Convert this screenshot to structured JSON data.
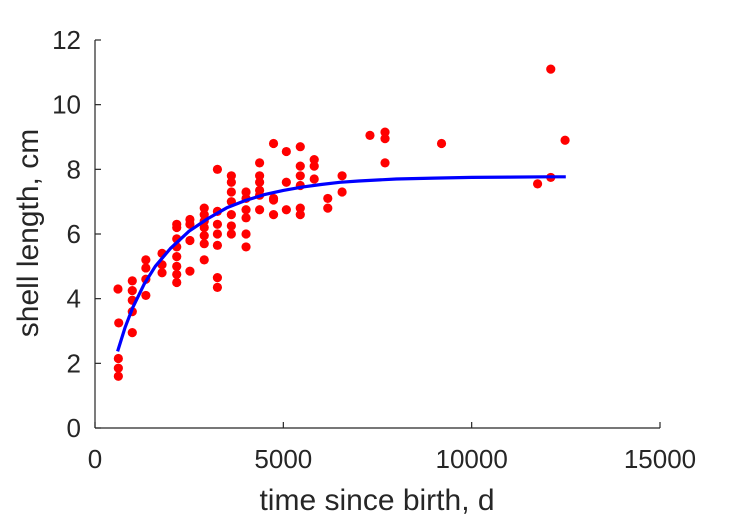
{
  "chart_data": {
    "type": "scatter",
    "title": "",
    "xlabel": "time since birth, d",
    "ylabel": "shell length, cm",
    "xlim": [
      0,
      15000
    ],
    "ylim": [
      0,
      12
    ],
    "xticks": [
      0,
      5000,
      10000,
      15000
    ],
    "xtick_labels": [
      "0",
      "5000",
      "10000",
      "15000"
    ],
    "yticks": [
      0,
      2,
      4,
      6,
      8,
      10,
      12
    ],
    "ytick_labels": [
      "0",
      "2",
      "4",
      "6",
      "8",
      "10",
      "12"
    ],
    "grid": false,
    "legend": "none",
    "series": [
      {
        "type": "scatter",
        "color": "#ff0000",
        "points": [
          [
            610,
            4.3
          ],
          [
            630,
            3.25
          ],
          [
            620,
            2.15
          ],
          [
            620,
            1.85
          ],
          [
            620,
            1.6
          ],
          [
            990,
            4.55
          ],
          [
            990,
            4.25
          ],
          [
            990,
            3.95
          ],
          [
            990,
            3.6
          ],
          [
            990,
            2.95
          ],
          [
            1350,
            5.2
          ],
          [
            1350,
            4.95
          ],
          [
            1350,
            4.6
          ],
          [
            1350,
            4.1
          ],
          [
            1780,
            5.4
          ],
          [
            1780,
            5.05
          ],
          [
            1780,
            4.8
          ],
          [
            2170,
            6.3
          ],
          [
            2170,
            6.2
          ],
          [
            2170,
            5.85
          ],
          [
            2170,
            5.6
          ],
          [
            2170,
            5.3
          ],
          [
            2170,
            5.0
          ],
          [
            2170,
            4.75
          ],
          [
            2170,
            4.5
          ],
          [
            2520,
            6.45
          ],
          [
            2520,
            6.3
          ],
          [
            2520,
            5.8
          ],
          [
            2520,
            4.85
          ],
          [
            2900,
            6.8
          ],
          [
            2900,
            6.6
          ],
          [
            2900,
            6.4
          ],
          [
            2900,
            6.2
          ],
          [
            2900,
            5.95
          ],
          [
            2900,
            5.7
          ],
          [
            2900,
            5.2
          ],
          [
            3250,
            8.0
          ],
          [
            3250,
            6.7
          ],
          [
            3250,
            6.3
          ],
          [
            3250,
            6.0
          ],
          [
            3250,
            5.65
          ],
          [
            3250,
            4.65
          ],
          [
            3250,
            4.35
          ],
          [
            3620,
            7.8
          ],
          [
            3620,
            7.6
          ],
          [
            3620,
            7.3
          ],
          [
            3620,
            7.0
          ],
          [
            3620,
            6.6
          ],
          [
            3620,
            6.25
          ],
          [
            3620,
            6.0
          ],
          [
            4010,
            7.3
          ],
          [
            4010,
            7.1
          ],
          [
            4010,
            6.75
          ],
          [
            4010,
            6.5
          ],
          [
            4010,
            6.0
          ],
          [
            4010,
            5.6
          ],
          [
            4370,
            8.2
          ],
          [
            4370,
            7.8
          ],
          [
            4370,
            7.6
          ],
          [
            4370,
            7.35
          ],
          [
            4370,
            7.2
          ],
          [
            4370,
            6.75
          ],
          [
            4740,
            8.8
          ],
          [
            4740,
            7.1
          ],
          [
            4740,
            7.05
          ],
          [
            4740,
            6.6
          ],
          [
            5080,
            8.55
          ],
          [
            5080,
            7.6
          ],
          [
            5080,
            6.75
          ],
          [
            5450,
            8.7
          ],
          [
            5450,
            8.1
          ],
          [
            5450,
            7.8
          ],
          [
            5450,
            7.5
          ],
          [
            5450,
            6.8
          ],
          [
            5450,
            6.6
          ],
          [
            5820,
            8.3
          ],
          [
            5820,
            8.1
          ],
          [
            5820,
            7.7
          ],
          [
            6180,
            7.1
          ],
          [
            6180,
            6.8
          ],
          [
            6560,
            7.8
          ],
          [
            6560,
            7.3
          ],
          [
            7300,
            9.05
          ],
          [
            7700,
            9.15
          ],
          [
            7700,
            8.95
          ],
          [
            7700,
            8.2
          ],
          [
            9200,
            8.8
          ],
          [
            11750,
            7.55
          ],
          [
            12100,
            11.1
          ],
          [
            12100,
            7.75
          ],
          [
            12480,
            8.9
          ]
        ]
      },
      {
        "type": "line",
        "color": "#0000ff",
        "x": [
          600,
          800,
          1000,
          1300,
          1600,
          2000,
          2500,
          3000,
          3500,
          4000,
          4500,
          5000,
          5500,
          6000,
          6500,
          7000,
          8000,
          9000,
          10000,
          11000,
          12000,
          12500
        ],
        "y": [
          2.37,
          3.11,
          3.72,
          4.44,
          5.0,
          5.55,
          6.09,
          6.48,
          6.81,
          7.04,
          7.22,
          7.35,
          7.45,
          7.53,
          7.6,
          7.64,
          7.7,
          7.73,
          7.75,
          7.76,
          7.77,
          7.77
        ]
      }
    ]
  }
}
